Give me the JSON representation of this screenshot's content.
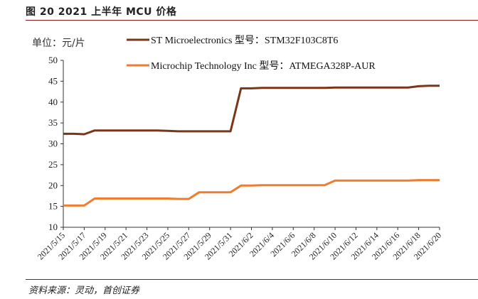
{
  "figure_title": "图 20 2021 上半年 MCU 价格",
  "source": "资料来源：灵动，首创证券",
  "chart_data": {
    "type": "line",
    "title": "",
    "ylabel": "单位：元/片",
    "xlabel": "",
    "ylim": [
      10,
      50
    ],
    "yticks": [
      10,
      15,
      20,
      25,
      30,
      35,
      40,
      45,
      50
    ],
    "grid": false,
    "legend_position": "top",
    "x_tick_labels": [
      "2021/5/15",
      "2021/5/17",
      "2021/5/19",
      "2021/5/21",
      "2021/5/23",
      "2021/5/25",
      "2021/5/27",
      "2021/5/29",
      "2021/5/31",
      "2021/6/2",
      "2021/6/4",
      "2021/6/6",
      "2021/6/8",
      "2021/6/10",
      "2021/6/12",
      "2021/6/14",
      "2021/6/16",
      "2021/6/18",
      "2021/6/20"
    ],
    "x": [
      "2021/5/15",
      "2021/5/16",
      "2021/5/17",
      "2021/5/18",
      "2021/5/19",
      "2021/5/20",
      "2021/5/21",
      "2021/5/22",
      "2021/5/23",
      "2021/5/24",
      "2021/5/25",
      "2021/5/26",
      "2021/5/27",
      "2021/5/28",
      "2021/5/29",
      "2021/5/30",
      "2021/5/31",
      "2021/6/1",
      "2021/6/2",
      "2021/6/3",
      "2021/6/4",
      "2021/6/5",
      "2021/6/6",
      "2021/6/7",
      "2021/6/8",
      "2021/6/9",
      "2021/6/10",
      "2021/6/11",
      "2021/6/12",
      "2021/6/13",
      "2021/6/14",
      "2021/6/15",
      "2021/6/16",
      "2021/6/17",
      "2021/6/18",
      "2021/6/19",
      "2021/6/20"
    ],
    "series": [
      {
        "name": "ST Microelectronics 型号：STM32F103C8T6",
        "color": "#7b3518",
        "values": [
          32.4,
          32.4,
          32.3,
          33.2,
          33.2,
          33.2,
          33.2,
          33.2,
          33.2,
          33.2,
          33.1,
          33.0,
          33.0,
          33.0,
          33.0,
          33.0,
          33.0,
          43.3,
          43.3,
          43.4,
          43.4,
          43.4,
          43.4,
          43.4,
          43.4,
          43.4,
          43.5,
          43.5,
          43.5,
          43.5,
          43.5,
          43.5,
          43.5,
          43.5,
          43.8,
          43.9,
          43.9
        ]
      },
      {
        "name": "Microchip Technology Inc 型号：ATMEGA328P-AUR",
        "color": "#ed7d31",
        "values": [
          15.2,
          15.2,
          15.2,
          16.9,
          16.9,
          16.9,
          16.9,
          16.9,
          16.9,
          16.9,
          16.9,
          16.8,
          16.8,
          18.4,
          18.4,
          18.4,
          18.4,
          20.0,
          20.0,
          20.1,
          20.1,
          20.1,
          20.1,
          20.1,
          20.1,
          20.1,
          21.2,
          21.2,
          21.2,
          21.2,
          21.2,
          21.2,
          21.2,
          21.2,
          21.3,
          21.3,
          21.3
        ]
      }
    ]
  }
}
